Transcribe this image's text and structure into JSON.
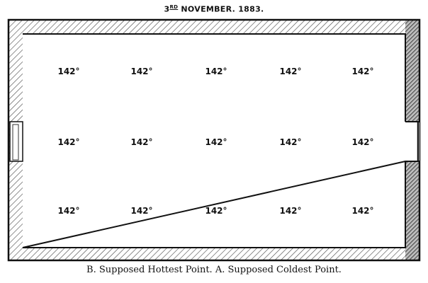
{
  "title": {
    "day": "3",
    "suffix": "RD",
    "rest": "NOVEMBER. 1883."
  },
  "readings": [
    [
      "142°",
      "142°",
      "142°",
      "142°",
      "142°"
    ],
    [
      "142°",
      "142°",
      "142°",
      "142°",
      "142°"
    ],
    [
      "142°",
      "142°",
      "142°",
      "142°",
      "142°"
    ]
  ],
  "caption": "B. Supposed Hottest Point.   A. Supposed Coldest Point."
}
